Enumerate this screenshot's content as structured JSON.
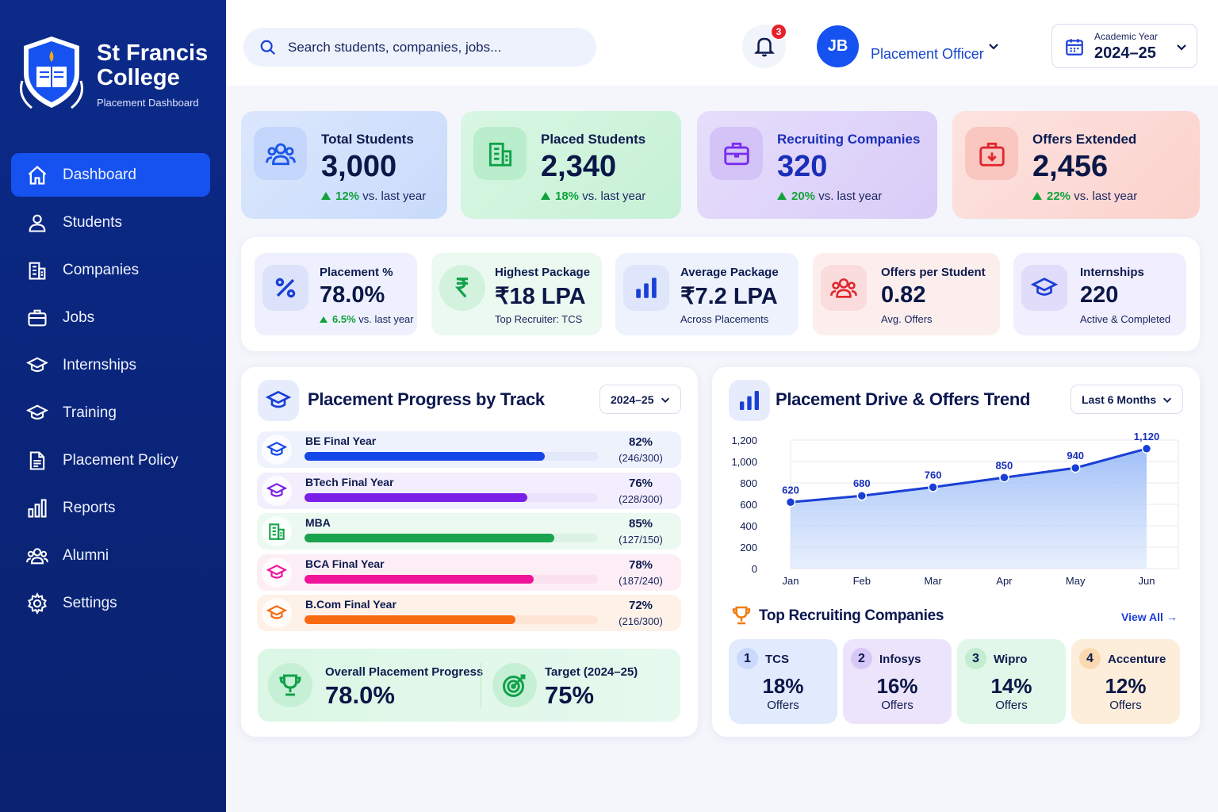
{
  "brand": {
    "name": "St Francis College",
    "subtitle": "Placement Dashboard"
  },
  "sidebar": {
    "items": [
      {
        "label": "Dashboard",
        "icon": "home-icon",
        "active": true
      },
      {
        "label": "Students",
        "icon": "user-icon"
      },
      {
        "label": "Companies",
        "icon": "building-icon"
      },
      {
        "label": "Jobs",
        "icon": "briefcase-icon"
      },
      {
        "label": "Internships",
        "icon": "graduation-cap-icon"
      },
      {
        "label": "Training",
        "icon": "graduation-cap-icon"
      },
      {
        "label": "Placement Policy",
        "icon": "document-icon"
      },
      {
        "label": "Reports",
        "icon": "bar-chart-icon"
      },
      {
        "label": "Alumni",
        "icon": "users-icon"
      },
      {
        "label": "Settings",
        "icon": "gear-icon"
      }
    ]
  },
  "header": {
    "search_placeholder": "Search students, companies, jobs...",
    "notification_count": "3",
    "avatar_initials": "JB",
    "role": "Placement Officer",
    "year_label": "Academic Year",
    "year_value": "2024–25"
  },
  "stats": [
    {
      "title": "Total Students",
      "value": "3,000",
      "delta": "12%",
      "suffix": "vs. last year",
      "icon": "users-icon",
      "color": "#1a56e8"
    },
    {
      "title": "Placed Students",
      "value": "2,340",
      "delta": "18%",
      "suffix": "vs. last year",
      "icon": "building-icon",
      "color": "#11a14a"
    },
    {
      "title": "Recruiting Companies",
      "value": "320",
      "delta": "20%",
      "suffix": "vs. last year",
      "icon": "briefcase-icon",
      "color": "#7a2cf0"
    },
    {
      "title": "Offers Extended",
      "value": "2,456",
      "delta": "22%",
      "suffix": "vs. last year",
      "icon": "offer-icon",
      "color": "#e0262e"
    }
  ],
  "kpis": [
    {
      "title": "Placement %",
      "value": "78.0%",
      "delta": "6.5%",
      "sub": "vs. last year",
      "icon": "percent-icon"
    },
    {
      "title": "Highest Package",
      "value": "₹18 LPA",
      "sub": "Top Recruiter: TCS",
      "icon": "rupee-icon"
    },
    {
      "title": "Average Package",
      "value": "₹7.2 LPA",
      "sub": "Across Placements",
      "icon": "bar-chart-icon"
    },
    {
      "title": "Offers per Student",
      "value": "0.82",
      "sub": "Avg. Offers",
      "icon": "users-icon"
    },
    {
      "title": "Internships",
      "value": "220",
      "sub": "Active & Completed",
      "icon": "graduation-cap-icon"
    }
  ],
  "progress": {
    "title": "Placement Progress by Track",
    "filter": "2024–25",
    "tracks": [
      {
        "name": "BE Final Year",
        "pct": "82%",
        "count": "(246/300)",
        "fraction": 0.82,
        "color": "#1446e8",
        "track_bg": "#e3e8fb",
        "row_bg": "#eef2fd"
      },
      {
        "name": "BTech Final Year",
        "pct": "76%",
        "count": "(228/300)",
        "fraction": 0.76,
        "color": "#7a1fe6",
        "track_bg": "#ebe3fb",
        "row_bg": "#f3eefd"
      },
      {
        "name": "MBA",
        "pct": "85%",
        "count": "(127/150)",
        "fraction": 0.85,
        "color": "#1aa34e",
        "track_bg": "#dcf2e4",
        "row_bg": "#ecf9f1"
      },
      {
        "name": "BCA Final Year",
        "pct": "78%",
        "count": "(187/240)",
        "fraction": 0.78,
        "color": "#f0139a",
        "track_bg": "#fbe0ef",
        "row_bg": "#fdeef6"
      },
      {
        "name": "B.Com Final Year",
        "pct": "72%",
        "count": "(216/300)",
        "fraction": 0.72,
        "color": "#f76a10",
        "track_bg": "#fde5d6",
        "row_bg": "#fef1e8"
      }
    ],
    "overall_label": "Overall Placement Progress",
    "overall_value": "78.0%",
    "target_label": "Target (2024–25)",
    "target_value": "75%"
  },
  "trend": {
    "title": "Placement Drive & Offers Trend",
    "filter": "Last 6 Months"
  },
  "chart_data": {
    "type": "area",
    "categories": [
      "Jan",
      "Feb",
      "Mar",
      "Apr",
      "May",
      "Jun"
    ],
    "values": [
      620,
      680,
      760,
      850,
      940,
      1120
    ],
    "data_labels": [
      "620",
      "680",
      "760",
      "850",
      "940",
      "1,120"
    ],
    "ylim": [
      0,
      1200
    ],
    "yticks": [
      "0",
      "200",
      "400",
      "600",
      "800",
      "1,000",
      "1,200"
    ],
    "grid": true,
    "color": "#1a3fd6"
  },
  "companies": {
    "title": "Top Recruiting Companies",
    "view_all": "View All",
    "items": [
      {
        "rank": "1",
        "name": "TCS",
        "value": "18%",
        "label": "Offers",
        "bg": "#e2ebfd",
        "rank_bg": "#c9d8fb"
      },
      {
        "rank": "2",
        "name": "Infosys",
        "value": "16%",
        "label": "Offers",
        "bg": "#ece4fb",
        "rank_bg": "#d8c8f8"
      },
      {
        "rank": "3",
        "name": "Wipro",
        "value": "14%",
        "label": "Offers",
        "bg": "#e1f7e9",
        "rank_bg": "#c2edd1"
      },
      {
        "rank": "4",
        "name": "Accenture",
        "value": "12%",
        "label": "Offers",
        "bg": "#fdeedb",
        "rank_bg": "#fbd9b0"
      }
    ]
  }
}
